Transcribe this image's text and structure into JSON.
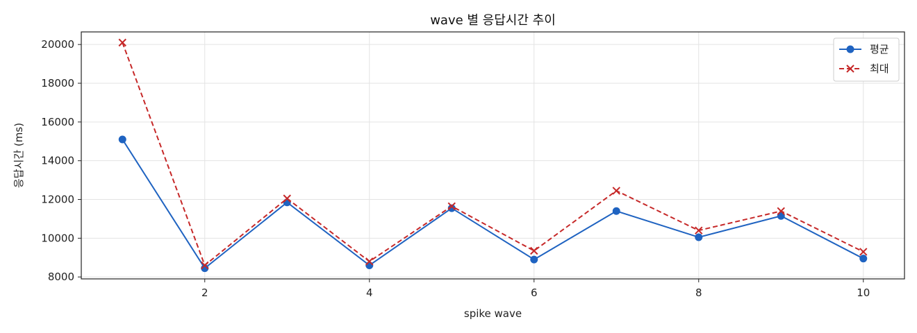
{
  "chart_data": {
    "type": "line",
    "title": "wave 별 응답시간 추이",
    "xlabel": "spike wave",
    "ylabel": "응답시간 (ms)",
    "x": [
      1,
      2,
      3,
      4,
      5,
      6,
      7,
      8,
      9,
      10
    ],
    "xlim": [
      0.5,
      10.5
    ],
    "ylim": [
      7900,
      20650
    ],
    "x_ticks": [
      2,
      4,
      6,
      8,
      10
    ],
    "y_ticks": [
      8000,
      10000,
      12000,
      14000,
      16000,
      18000,
      20000
    ],
    "grid": true,
    "legend_position": "top-right",
    "series": [
      {
        "name": "평균",
        "color": "#1f63c1",
        "marker": "circle",
        "line_style": "solid",
        "values": [
          15100,
          8450,
          11850,
          8600,
          11550,
          8900,
          11400,
          10050,
          11150,
          8950
        ]
      },
      {
        "name": "최대",
        "color": "#c62828",
        "marker": "x",
        "line_style": "dashed",
        "values": [
          20100,
          8600,
          12050,
          8800,
          11650,
          9350,
          12450,
          10400,
          11400,
          9300
        ]
      }
    ]
  }
}
